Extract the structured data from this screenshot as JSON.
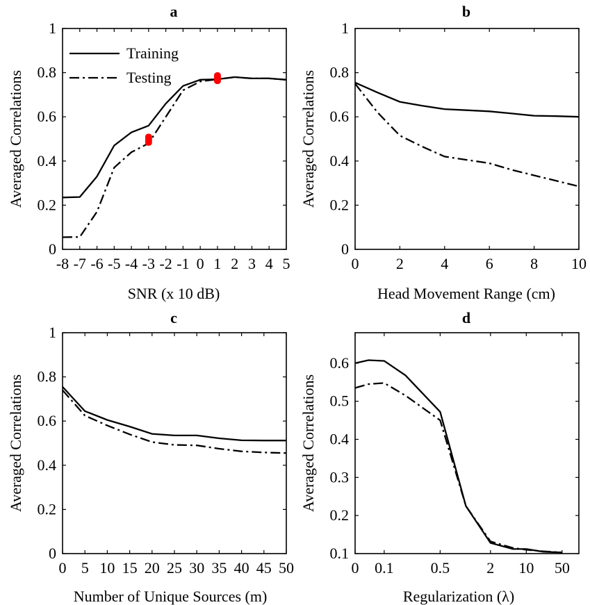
{
  "chart_data": [
    {
      "panel": "a",
      "type": "line",
      "title": "a",
      "xlabel": "SNR (x 10 dB)",
      "ylabel": "Averaged Correlations",
      "xlim": [
        -8,
        5
      ],
      "ylim": [
        0,
        1
      ],
      "x_ticks": [
        -8,
        -7,
        -6,
        -5,
        -4,
        -3,
        -2,
        -1,
        0,
        1,
        2,
        3,
        4,
        5
      ],
      "x_tick_labels": [
        "-8",
        "-7",
        "-6",
        "-5",
        "-4",
        "-3",
        "-2",
        "-1",
        "0",
        "1",
        "2",
        "3",
        "4",
        "5"
      ],
      "y_ticks": [
        0,
        0.2,
        0.4,
        0.6,
        0.8,
        1
      ],
      "y_tick_labels": [
        "0",
        "0.2",
        "0.4",
        "0.6",
        "0.8",
        "1"
      ],
      "legend": {
        "location": "top-left",
        "entries": [
          "Training",
          "Testing"
        ]
      },
      "series": [
        {
          "name": "Training",
          "style": "solid",
          "x": [
            -8,
            -7,
            -6,
            -5,
            -4,
            -3,
            -2,
            -1,
            0,
            1,
            2,
            3,
            4,
            5
          ],
          "y": [
            0.235,
            0.237,
            0.33,
            0.47,
            0.53,
            0.56,
            0.66,
            0.74,
            0.768,
            0.77,
            0.78,
            0.774,
            0.774,
            0.768
          ]
        },
        {
          "name": "Testing",
          "style": "dashdot",
          "x": [
            -8,
            -7,
            -6,
            -5,
            -4,
            -3,
            -2,
            -1,
            0,
            1,
            2,
            3,
            4,
            5
          ],
          "y": [
            0.055,
            0.056,
            0.17,
            0.37,
            0.44,
            0.48,
            0.6,
            0.72,
            0.76,
            0.77,
            0.78,
            0.774,
            0.774,
            0.768
          ]
        }
      ],
      "markers": {
        "color": "#ff0000",
        "points": [
          {
            "x": -3,
            "y": 0.483
          },
          {
            "x": -3,
            "y": 0.49
          },
          {
            "x": -3,
            "y": 0.497
          },
          {
            "x": -3,
            "y": 0.503
          },
          {
            "x": -3,
            "y": 0.51
          },
          {
            "x": 1,
            "y": 0.762
          },
          {
            "x": 1,
            "y": 0.769
          },
          {
            "x": 1,
            "y": 0.775
          },
          {
            "x": 1,
            "y": 0.781
          },
          {
            "x": 1,
            "y": 0.788
          }
        ]
      }
    },
    {
      "panel": "b",
      "type": "line",
      "title": "b",
      "xlabel": "Head Movement Range (cm)",
      "ylabel": "Averaged Correlations",
      "xlim": [
        0,
        10
      ],
      "ylim": [
        0,
        1
      ],
      "x_ticks": [
        0,
        2,
        4,
        6,
        8,
        10
      ],
      "x_tick_labels": [
        "0",
        "2",
        "4",
        "6",
        "8",
        "10"
      ],
      "y_ticks": [
        0,
        0.2,
        0.4,
        0.6,
        0.8,
        1
      ],
      "y_tick_labels": [
        "0",
        "0.2",
        "0.4",
        "0.6",
        "0.8",
        "1"
      ],
      "series": [
        {
          "name": "Training",
          "style": "solid",
          "x": [
            0,
            1,
            2,
            3,
            4,
            5,
            6,
            7,
            8,
            9,
            10
          ],
          "y": [
            0.755,
            0.71,
            0.668,
            0.65,
            0.635,
            0.63,
            0.625,
            0.615,
            0.605,
            0.603,
            0.6
          ]
        },
        {
          "name": "Testing",
          "style": "dashdot",
          "x": [
            0,
            1,
            2,
            3,
            4,
            5,
            6,
            7,
            8,
            9,
            10
          ],
          "y": [
            0.75,
            0.62,
            0.515,
            0.465,
            0.42,
            0.405,
            0.39,
            0.36,
            0.335,
            0.31,
            0.285
          ]
        }
      ]
    },
    {
      "panel": "c",
      "type": "line",
      "title": "c",
      "xlabel": "Number of Unique Sources (m)",
      "ylabel": "Averaged Correlations",
      "xlim": [
        0,
        50
      ],
      "ylim": [
        0,
        1
      ],
      "x_ticks": [
        0,
        5,
        10,
        15,
        20,
        25,
        30,
        35,
        40,
        45,
        50
      ],
      "x_tick_labels": [
        "0",
        "5",
        "10",
        "15",
        "20",
        "25",
        "30",
        "35",
        "40",
        "45",
        "50"
      ],
      "y_ticks": [
        0,
        0.2,
        0.4,
        0.6,
        0.8,
        1
      ],
      "y_tick_labels": [
        "0",
        "0.2",
        "0.4",
        "0.6",
        "0.8",
        "1"
      ],
      "series": [
        {
          "name": "Training",
          "style": "solid",
          "x": [
            0,
            5,
            10,
            15,
            20,
            25,
            30,
            35,
            40,
            45,
            50
          ],
          "y": [
            0.755,
            0.645,
            0.605,
            0.575,
            0.542,
            0.535,
            0.535,
            0.522,
            0.513,
            0.512,
            0.512
          ]
        },
        {
          "name": "Testing",
          "style": "dashdot",
          "x": [
            0,
            5,
            10,
            15,
            20,
            25,
            30,
            35,
            40,
            45,
            50
          ],
          "y": [
            0.74,
            0.625,
            0.58,
            0.54,
            0.505,
            0.492,
            0.49,
            0.475,
            0.463,
            0.458,
            0.455
          ]
        }
      ]
    },
    {
      "panel": "d",
      "type": "line",
      "title": "d",
      "xlabel": "Regularization (λ)",
      "ylabel": "Averaged Correlations",
      "xscale": "categorical-log",
      "ylim": [
        0.1,
        0.68
      ],
      "x_ticks": [
        "0",
        "0.1",
        "0.5",
        "2",
        "10",
        "50"
      ],
      "x_tick_labels": [
        "0",
        "0.1",
        "0.5",
        "2",
        "10",
        "50"
      ],
      "y_ticks": [
        0.1,
        0.2,
        0.3,
        0.4,
        0.5,
        0.6
      ],
      "y_tick_labels": [
        "0.1",
        "0.2",
        "0.3",
        "0.4",
        "0.5",
        "0.6"
      ],
      "series": [
        {
          "name": "Training",
          "style": "solid",
          "x": [
            "0",
            "0.05",
            "0.1",
            "0.2",
            "0.5",
            "1",
            "2",
            "5",
            "10",
            "20",
            "50"
          ],
          "y": [
            0.6,
            0.608,
            0.606,
            0.568,
            0.472,
            0.225,
            0.128,
            0.112,
            0.112,
            0.105,
            0.103
          ]
        },
        {
          "name": "Testing",
          "style": "dashdot",
          "x": [
            "0",
            "0.05",
            "0.1",
            "0.2",
            "0.5",
            "1",
            "2",
            "5",
            "10",
            "20",
            "50"
          ],
          "y": [
            0.535,
            0.545,
            0.548,
            0.515,
            0.45,
            0.225,
            0.132,
            0.115,
            0.11,
            0.106,
            0.103
          ]
        }
      ]
    }
  ]
}
